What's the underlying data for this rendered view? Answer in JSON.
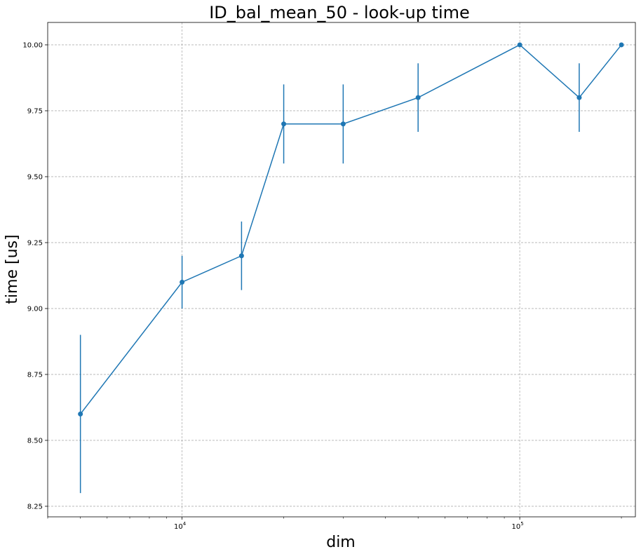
{
  "chart_data": {
    "type": "line",
    "title": "ID_bal_mean_50 - look-up time",
    "xlabel": "dim",
    "ylabel": "time [us]",
    "x_scale": "log",
    "xlim": [
      4000,
      220000
    ],
    "ylim": [
      8.21,
      10.085
    ],
    "grid": true,
    "x_ticks": [
      {
        "value": 10000,
        "base": "10",
        "exp": "4"
      },
      {
        "value": 100000,
        "base": "10",
        "exp": "5"
      }
    ],
    "y_ticks": [
      {
        "value": 8.25,
        "label": "8.25"
      },
      {
        "value": 8.5,
        "label": "8.50"
      },
      {
        "value": 8.75,
        "label": "8.75"
      },
      {
        "value": 9.0,
        "label": "9.00"
      },
      {
        "value": 9.25,
        "label": "9.25"
      },
      {
        "value": 9.5,
        "label": "9.50"
      },
      {
        "value": 9.75,
        "label": "9.75"
      },
      {
        "value": 10.0,
        "label": "10.00"
      }
    ],
    "series": [
      {
        "color": "#1f77b4",
        "x": [
          5000,
          10000,
          15000,
          20000,
          30000,
          50000,
          100000,
          150000,
          200000
        ],
        "y": [
          8.6,
          9.1,
          9.2,
          9.7,
          9.7,
          9.8,
          10.0,
          9.8,
          10.0
        ],
        "yerr": [
          0.3,
          0.1,
          0.13,
          0.15,
          0.15,
          0.13,
          0.0,
          0.13,
          0.0
        ]
      }
    ]
  }
}
